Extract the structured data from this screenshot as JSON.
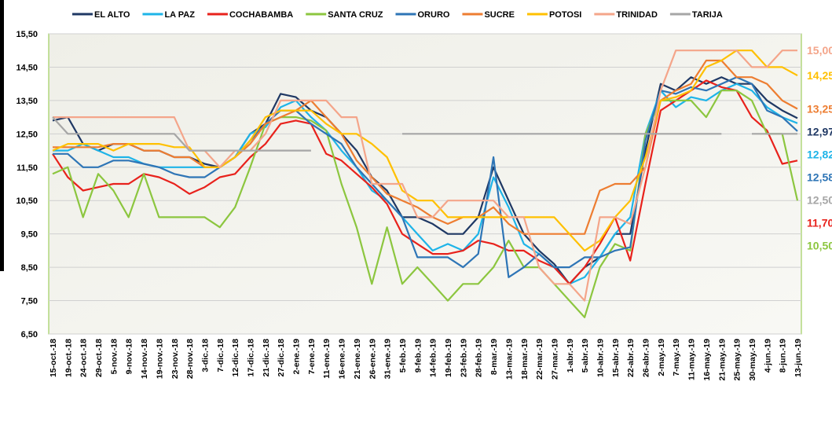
{
  "chart_data": {
    "type": "line",
    "categories": [
      "15-oct.-18",
      "19-oct.-18",
      "24-oct.-18",
      "29-oct.-18",
      "5-nov.-18",
      "9-nov.-18",
      "14-nov.-18",
      "19-nov.-18",
      "23-nov.-18",
      "28-nov.-18",
      "3-dic.-18",
      "7-dic.-18",
      "12-dic.-18",
      "17-dic.-18",
      "21-dic.-18",
      "27-dic.-18",
      "2-ene.-19",
      "7-ene.-19",
      "11-ene.-19",
      "16-ene.-19",
      "21-ene.-19",
      "26-ene.-19",
      "31-ene.-19",
      "5-feb.-19",
      "9-feb.-19",
      "14-feb.-19",
      "19-feb.-19",
      "23-feb.-19",
      "28-feb.-19",
      "8-mar.-19",
      "13-mar.-19",
      "18-mar.-19",
      "22-mar.-19",
      "27-mar.-19",
      "1-abr.-19",
      "5-abr.-19",
      "10-abr.-19",
      "15-abr.-19",
      "22-abr.-19",
      "26-abr.-19",
      "2-may.-19",
      "7-may.-19",
      "11-may.-19",
      "16-may.-19",
      "21-may.-19",
      "25-may.-19",
      "30-may.-19",
      "4-jun.-19",
      "8-jun.-19",
      "13-jun.-19"
    ],
    "series": [
      {
        "name": "EL ALTO",
        "color": "#1f3864",
        "end_label": "12,97",
        "values": [
          12.9,
          13.0,
          12.2,
          12.0,
          12.2,
          12.2,
          12.0,
          12.0,
          11.8,
          11.8,
          11.6,
          11.5,
          11.8,
          12.5,
          12.8,
          13.7,
          13.6,
          13.2,
          13.0,
          12.5,
          12.0,
          11.2,
          10.8,
          10.0,
          10.0,
          9.8,
          9.5,
          9.5,
          10.0,
          11.5,
          10.5,
          9.5,
          9.0,
          8.6,
          8.0,
          8.5,
          8.8,
          9.5,
          9.5,
          12.0,
          14.0,
          13.8,
          14.2,
          14.0,
          14.2,
          14.0,
          14.0,
          13.5,
          13.2,
          12.97
        ]
      },
      {
        "name": "LA PAZ",
        "color": "#1eb4e8",
        "end_label": "12,82",
        "values": [
          12.0,
          12.0,
          12.2,
          12.0,
          11.8,
          11.8,
          11.6,
          11.5,
          11.5,
          11.5,
          11.5,
          11.5,
          11.8,
          12.5,
          12.7,
          13.3,
          13.5,
          13.0,
          12.6,
          12.0,
          11.5,
          10.8,
          10.5,
          10.0,
          9.5,
          9.0,
          9.2,
          9.0,
          9.5,
          11.2,
          10.3,
          9.2,
          8.9,
          8.5,
          8.0,
          8.2,
          8.8,
          9.5,
          10.0,
          12.5,
          13.8,
          13.3,
          13.6,
          13.5,
          13.8,
          14.0,
          13.8,
          13.3,
          13.0,
          12.82
        ]
      },
      {
        "name": "COCHABAMBA",
        "color": "#e8221c",
        "end_label": "11,70",
        "values": [
          11.9,
          11.2,
          10.8,
          10.9,
          11.0,
          11.0,
          11.3,
          11.2,
          11.0,
          10.7,
          10.9,
          11.2,
          11.3,
          11.8,
          12.2,
          12.8,
          12.9,
          12.8,
          11.9,
          11.7,
          11.3,
          10.9,
          10.4,
          9.5,
          9.2,
          8.9,
          8.9,
          9.0,
          9.3,
          9.2,
          9.0,
          9.0,
          8.7,
          8.5,
          8.0,
          8.5,
          9.2,
          10.0,
          8.7,
          11.0,
          13.2,
          13.5,
          13.8,
          14.1,
          13.9,
          13.8,
          13.0,
          12.6,
          11.6,
          11.7
        ]
      },
      {
        "name": "SANTA CRUZ",
        "color": "#8cc63f",
        "end_label": "10,50",
        "values": [
          11.3,
          11.5,
          10.0,
          11.3,
          10.8,
          10.0,
          11.3,
          10.0,
          10.0,
          10.0,
          10.0,
          9.7,
          10.3,
          11.5,
          12.8,
          13.0,
          13.0,
          12.9,
          12.6,
          11.0,
          9.7,
          8.0,
          9.7,
          8.0,
          8.5,
          8.0,
          7.5,
          8.0,
          8.0,
          8.5,
          9.3,
          8.5,
          8.5,
          8.0,
          7.5,
          7.0,
          8.5,
          9.2,
          9.0,
          12.5,
          13.5,
          13.5,
          13.5,
          13.0,
          13.8,
          13.8,
          13.5,
          12.5,
          12.5,
          10.5
        ]
      },
      {
        "name": "ORURO",
        "color": "#2e75b6",
        "end_label": "12,58",
        "values": [
          11.9,
          11.9,
          11.5,
          11.5,
          11.7,
          11.7,
          11.6,
          11.5,
          11.3,
          11.2,
          11.2,
          11.5,
          11.8,
          12.3,
          12.8,
          13.2,
          13.2,
          12.8,
          12.5,
          12.2,
          11.5,
          11.0,
          10.5,
          10.0,
          8.8,
          8.8,
          8.8,
          8.5,
          8.9,
          11.8,
          8.2,
          8.5,
          8.9,
          8.5,
          8.5,
          8.8,
          8.8,
          9.0,
          9.1,
          12.3,
          13.8,
          13.7,
          13.9,
          13.8,
          14.0,
          14.2,
          14.0,
          13.2,
          13.0,
          12.58
        ]
      },
      {
        "name": "SUCRE",
        "color": "#ed7d31",
        "end_label": "13,25",
        "values": [
          12.1,
          12.1,
          12.1,
          12.1,
          12.2,
          12.2,
          12.0,
          12.0,
          11.8,
          11.8,
          11.5,
          11.5,
          11.8,
          12.2,
          12.8,
          13.0,
          13.2,
          13.5,
          13.0,
          12.5,
          11.7,
          11.2,
          10.7,
          10.5,
          10.3,
          10.0,
          9.8,
          10.0,
          10.0,
          10.3,
          9.8,
          9.5,
          9.5,
          9.5,
          9.5,
          9.5,
          10.8,
          11.0,
          11.0,
          11.5,
          13.5,
          13.8,
          14.0,
          14.7,
          14.7,
          14.2,
          14.2,
          14.0,
          13.5,
          13.25
        ]
      },
      {
        "name": "POTOSI",
        "color": "#ffc000",
        "end_label": "14,25",
        "values": [
          12.0,
          12.2,
          12.2,
          12.2,
          12.0,
          12.2,
          12.2,
          12.2,
          12.1,
          12.1,
          11.5,
          11.5,
          11.8,
          12.3,
          13.0,
          13.2,
          13.2,
          13.2,
          12.8,
          12.5,
          12.5,
          12.2,
          11.8,
          10.8,
          10.5,
          10.5,
          10.0,
          10.0,
          10.0,
          10.0,
          10.0,
          10.0,
          10.0,
          10.0,
          9.5,
          9.0,
          9.3,
          10.0,
          10.5,
          11.8,
          13.5,
          13.6,
          13.8,
          14.5,
          14.7,
          15.0,
          15.0,
          14.5,
          14.5,
          14.25
        ]
      },
      {
        "name": "TRINIDAD",
        "color": "#f4a58a",
        "end_label": "15,00",
        "values": [
          13.0,
          13.0,
          13.0,
          13.0,
          13.0,
          13.0,
          13.0,
          13.0,
          13.0,
          12.0,
          12.0,
          11.5,
          12.0,
          12.0,
          12.5,
          13.5,
          13.5,
          13.5,
          13.5,
          13.0,
          13.0,
          11.0,
          11.0,
          11.0,
          10.0,
          10.0,
          10.5,
          10.5,
          10.5,
          10.5,
          10.0,
          10.0,
          8.5,
          8.0,
          8.0,
          7.5,
          10.0,
          10.0,
          9.8,
          11.5,
          13.8,
          15.0,
          15.0,
          15.0,
          15.0,
          15.0,
          14.5,
          14.5,
          15.0,
          15.0
        ]
      },
      {
        "name": "TARIJA",
        "color": "#a6a6a6",
        "end_label": "12,50",
        "values": [
          13.0,
          12.5,
          12.5,
          12.5,
          12.5,
          12.5,
          12.5,
          12.5,
          12.5,
          12.0,
          12.0,
          12.0,
          12.0,
          12.0,
          12.0,
          12.0,
          12.0,
          12.0,
          null,
          null,
          null,
          null,
          null,
          12.5,
          12.5,
          12.5,
          12.5,
          12.5,
          12.5,
          12.5,
          12.5,
          12.5,
          12.5,
          12.5,
          12.5,
          12.5,
          12.5,
          12.5,
          12.5,
          12.5,
          12.5,
          12.5,
          12.5,
          12.5,
          12.5,
          null,
          12.5,
          12.5,
          12.5,
          12.5
        ]
      }
    ],
    "ylim": [
      6.5,
      15.5
    ],
    "yticks": [
      {
        "value": 6.5,
        "label": "6,50"
      },
      {
        "value": 7.5,
        "label": "7,50"
      },
      {
        "value": 8.5,
        "label": "8,50"
      },
      {
        "value": 9.5,
        "label": "9,50"
      },
      {
        "value": 10.5,
        "label": "10,50"
      },
      {
        "value": 11.5,
        "label": "11,50"
      },
      {
        "value": 12.5,
        "label": "12,50"
      },
      {
        "value": 13.5,
        "label": "13,50"
      },
      {
        "value": 14.5,
        "label": "14,50"
      },
      {
        "value": 15.5,
        "label": "15,50"
      }
    ],
    "grid": true,
    "legend": "top"
  }
}
